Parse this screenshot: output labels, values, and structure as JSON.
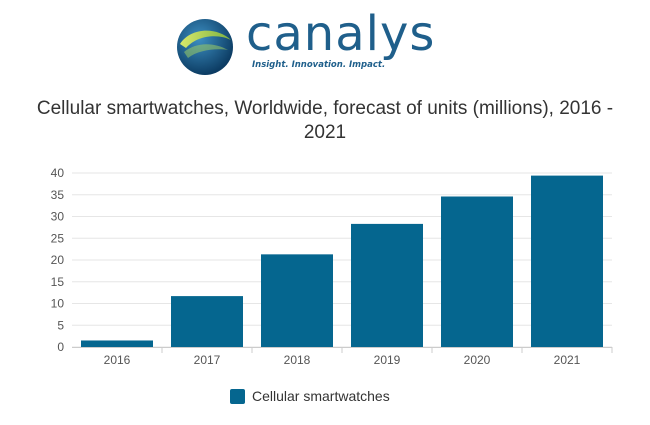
{
  "logo": {
    "name": "canalys",
    "tagline": "Insight. Innovation. Impact."
  },
  "colors": {
    "bar": "#05668f",
    "logo_text": "#1f5f8b",
    "grid": "#e6e6e6",
    "axis_text": "#555555"
  },
  "chart_data": {
    "type": "bar",
    "title_line1": "Cellular smartwatches, Worldwide, forecast of units (millions), 2016 -",
    "title_line2": "2021",
    "categories": [
      "2016",
      "2017",
      "2018",
      "2019",
      "2020",
      "2021"
    ],
    "series": [
      {
        "name": "Cellular smartwatches",
        "values": [
          1.5,
          11.7,
          21.3,
          28.3,
          34.6,
          39.4
        ]
      }
    ],
    "ylim": [
      0,
      40
    ],
    "yticks": [
      "0",
      "5",
      "10",
      "15",
      "20",
      "25",
      "30",
      "35",
      "40"
    ],
    "xlabel": "",
    "ylabel": "",
    "grid": true,
    "legend_position": "bottom"
  }
}
